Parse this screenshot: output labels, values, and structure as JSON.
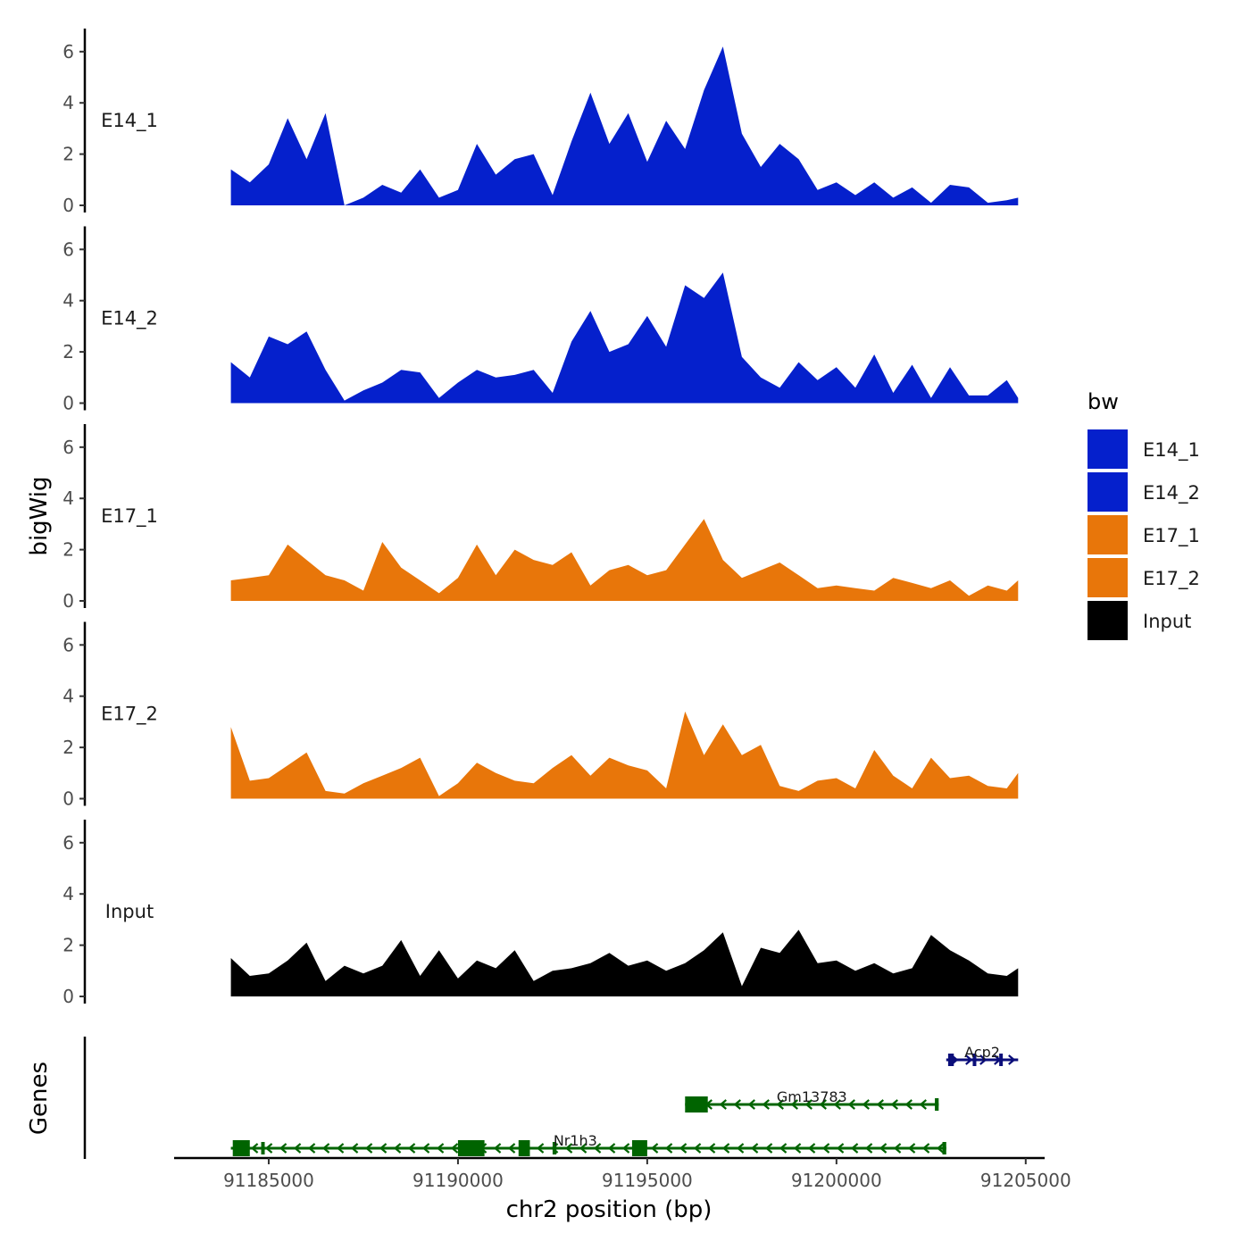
{
  "chart_data": {
    "type": "area",
    "title": "",
    "xlabel": "chr2 position (bp)",
    "ylabel": "bigWig",
    "genes_panel_label": "Genes",
    "xlim": [
      91182500,
      91205500
    ],
    "x_ticks": [
      91185000,
      91190000,
      91195000,
      91200000,
      91205000
    ],
    "x_tick_labels": [
      "91185000",
      "91190000",
      "91195000",
      "91200000",
      "91205000"
    ],
    "ylim": [
      0,
      6.9
    ],
    "y_ticks": [
      0,
      2,
      4,
      6
    ],
    "y_tick_labels": [
      "0",
      "2",
      "4",
      "6"
    ],
    "legend": {
      "title": "bw",
      "entries": [
        {
          "label": "E14_1",
          "color": "#0520CC"
        },
        {
          "label": "E14_2",
          "color": "#0520CC"
        },
        {
          "label": "E17_1",
          "color": "#E8760A"
        },
        {
          "label": "E17_2",
          "color": "#E8760A"
        },
        {
          "label": "Input",
          "color": "#000000"
        }
      ]
    },
    "x": [
      91184000,
      91184500,
      91185000,
      91185500,
      91186000,
      91186500,
      91187000,
      91187500,
      91188000,
      91188500,
      91189000,
      91189500,
      91190000,
      91190500,
      91191000,
      91191500,
      91192000,
      91192500,
      91193000,
      91193500,
      91194000,
      91194500,
      91195000,
      91195500,
      91196000,
      91196500,
      91197000,
      91197500,
      91198000,
      91198500,
      91199000,
      91199500,
      91200000,
      91200500,
      91201000,
      91201500,
      91202000,
      91202500,
      91203000,
      91203500,
      91204000,
      91204500,
      91204800
    ],
    "series": [
      {
        "name": "E14_1",
        "color": "#0520CC",
        "values": [
          1.4,
          0.9,
          1.6,
          3.4,
          1.8,
          3.6,
          0,
          0.3,
          0.8,
          0.5,
          1.4,
          0.3,
          0.6,
          2.4,
          1.2,
          1.8,
          2.0,
          0.4,
          2.5,
          4.4,
          2.4,
          3.6,
          1.7,
          3.3,
          2.2,
          4.5,
          6.2,
          2.8,
          1.5,
          2.4,
          1.8,
          0.6,
          0.9,
          0.4,
          0.9,
          0.3,
          0.7,
          0.1,
          0.8,
          0.7,
          0.1,
          0.2,
          0.3
        ]
      },
      {
        "name": "E14_2",
        "color": "#0520CC",
        "values": [
          1.6,
          1.0,
          2.6,
          2.3,
          2.8,
          1.3,
          0.1,
          0.5,
          0.8,
          1.3,
          1.2,
          0.2,
          0.8,
          1.3,
          1.0,
          1.1,
          1.3,
          0.4,
          2.4,
          3.6,
          2.0,
          2.3,
          3.4,
          2.2,
          4.6,
          4.1,
          5.1,
          1.8,
          1.0,
          0.6,
          1.6,
          0.9,
          1.4,
          0.6,
          1.9,
          0.4,
          1.5,
          0.2,
          1.4,
          0.3,
          0.3,
          0.9,
          0.2
        ]
      },
      {
        "name": "E17_1",
        "color": "#E8760A",
        "values": [
          0.8,
          0.9,
          1.0,
          2.2,
          1.6,
          1.0,
          0.8,
          0.4,
          2.3,
          1.3,
          0.8,
          0.3,
          0.9,
          2.2,
          1.0,
          2.0,
          1.6,
          1.4,
          1.9,
          0.6,
          1.2,
          1.4,
          1.0,
          1.2,
          2.2,
          3.2,
          1.6,
          0.9,
          1.2,
          1.5,
          1.0,
          0.5,
          0.6,
          0.5,
          0.4,
          0.9,
          0.7,
          0.5,
          0.8,
          0.2,
          0.6,
          0.4,
          0.8
        ]
      },
      {
        "name": "E17_2",
        "color": "#E8760A",
        "values": [
          2.8,
          0.7,
          0.8,
          1.3,
          1.8,
          0.3,
          0.2,
          0.6,
          0.9,
          1.2,
          1.6,
          0.1,
          0.6,
          1.4,
          1.0,
          0.7,
          0.6,
          1.2,
          1.7,
          0.9,
          1.6,
          1.3,
          1.1,
          0.4,
          3.4,
          1.7,
          2.9,
          1.7,
          2.1,
          0.5,
          0.3,
          0.7,
          0.8,
          0.4,
          1.9,
          0.9,
          0.4,
          1.6,
          0.8,
          0.9,
          0.5,
          0.4,
          1.0
        ]
      },
      {
        "name": "Input",
        "color": "#000000",
        "values": [
          1.5,
          0.8,
          0.9,
          1.4,
          2.1,
          0.6,
          1.2,
          0.9,
          1.2,
          2.2,
          0.8,
          1.8,
          0.7,
          1.4,
          1.1,
          1.8,
          0.6,
          1.0,
          1.1,
          1.3,
          1.7,
          1.2,
          1.4,
          1.0,
          1.3,
          1.8,
          2.5,
          0.4,
          1.9,
          1.7,
          2.6,
          1.3,
          1.4,
          1.0,
          1.3,
          0.9,
          1.1,
          2.4,
          1.8,
          1.4,
          0.9,
          0.8,
          1.1
        ]
      }
    ],
    "genes": [
      {
        "name": "Acp2",
        "strand": "+",
        "color": "#0B0E7A",
        "start": 91202900,
        "end": 91204800,
        "exons": [
          [
            91202950,
            91203100
          ],
          [
            91203600,
            91203650
          ],
          [
            91204300,
            91204350
          ]
        ]
      },
      {
        "name": "Gm13783",
        "strand": "-",
        "color": "#006400",
        "start": 91196000,
        "end": 91202700,
        "exons": [
          [
            91196000,
            91196600
          ],
          [
            91202600,
            91202700
          ]
        ]
      },
      {
        "name": "Nr1h3",
        "strand": "-",
        "color": "#006400",
        "start": 91184000,
        "end": 91202900,
        "exons": [
          [
            91184050,
            91184500
          ],
          [
            91184800,
            91184850
          ],
          [
            91190000,
            91190700
          ],
          [
            91191600,
            91191900
          ],
          [
            91192500,
            91192600
          ],
          [
            91194600,
            91195000
          ],
          [
            91202800,
            91202900
          ]
        ]
      }
    ]
  }
}
